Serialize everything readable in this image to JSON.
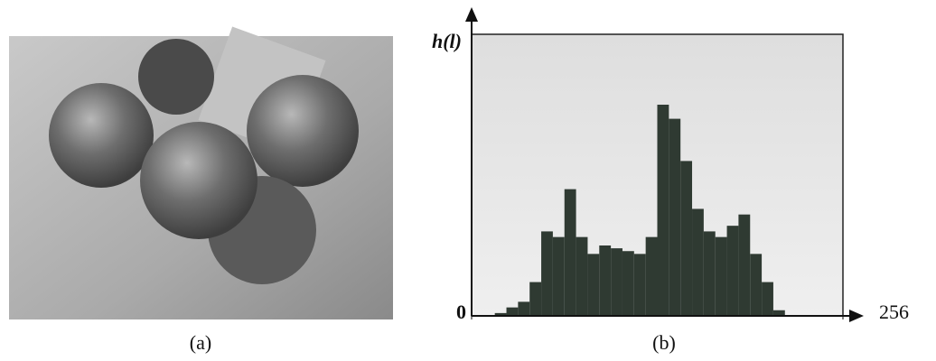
{
  "figure": {
    "captions": [
      "(a)",
      "(b)"
    ]
  },
  "chart_data": {
    "type": "histogram",
    "ylabel": "h(l)",
    "xlim": [
      0,
      256
    ],
    "xticks": [
      0,
      256
    ],
    "ylim": [
      0,
      100
    ],
    "bins": [
      0,
      8,
      16,
      24,
      32,
      40,
      48,
      56,
      64,
      72,
      80,
      88,
      96,
      104,
      112,
      120,
      128,
      136,
      144,
      152,
      160,
      168,
      176,
      184,
      192,
      200,
      208,
      216,
      224,
      232,
      240,
      248,
      256
    ],
    "counts": [
      0,
      0,
      1,
      3,
      5,
      12,
      30,
      28,
      45,
      28,
      22,
      25,
      24,
      23,
      22,
      28,
      75,
      70,
      55,
      38,
      30,
      28,
      32,
      36,
      22,
      12,
      2,
      0,
      0,
      0,
      0,
      0
    ],
    "color": "#2f3a32"
  }
}
